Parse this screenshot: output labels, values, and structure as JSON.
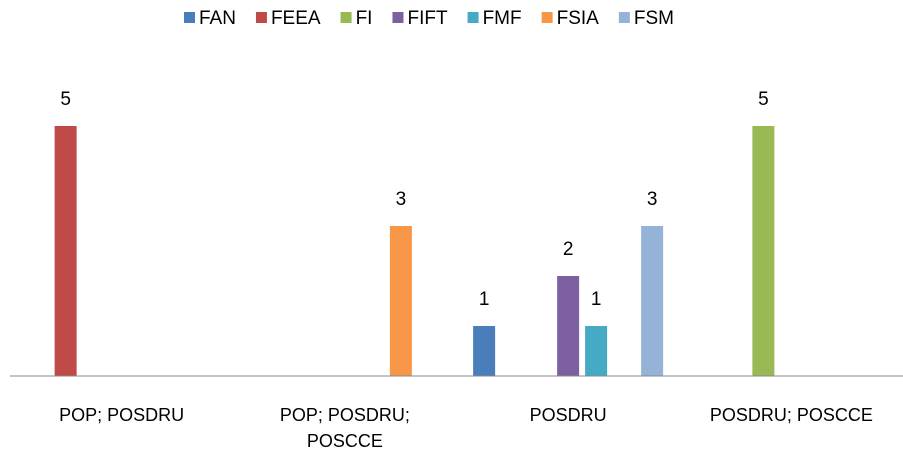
{
  "chart_data": {
    "type": "bar",
    "categories": [
      "POP; POSDRU",
      "POP; POSDRU; POSCCE",
      "POSDRU",
      "POSDRU; POSCCE"
    ],
    "series": [
      {
        "name": "FAN",
        "color": "#4a7ebb",
        "values": [
          null,
          null,
          1,
          null
        ]
      },
      {
        "name": "FEEA",
        "color": "#be4b48",
        "values": [
          5,
          null,
          null,
          null
        ]
      },
      {
        "name": "FI",
        "color": "#98b954",
        "values": [
          null,
          null,
          null,
          5
        ]
      },
      {
        "name": "FIFT",
        "color": "#7d60a0",
        "values": [
          null,
          null,
          2,
          null
        ]
      },
      {
        "name": "FMF",
        "color": "#46aac5",
        "values": [
          null,
          null,
          1,
          null
        ]
      },
      {
        "name": "FSIA",
        "color": "#f79646",
        "values": [
          null,
          3,
          null,
          null
        ]
      },
      {
        "name": "FSM",
        "color": "#95b3d7",
        "values": [
          null,
          null,
          3,
          null
        ]
      }
    ],
    "ylim": [
      0,
      6
    ],
    "legend": "top"
  }
}
